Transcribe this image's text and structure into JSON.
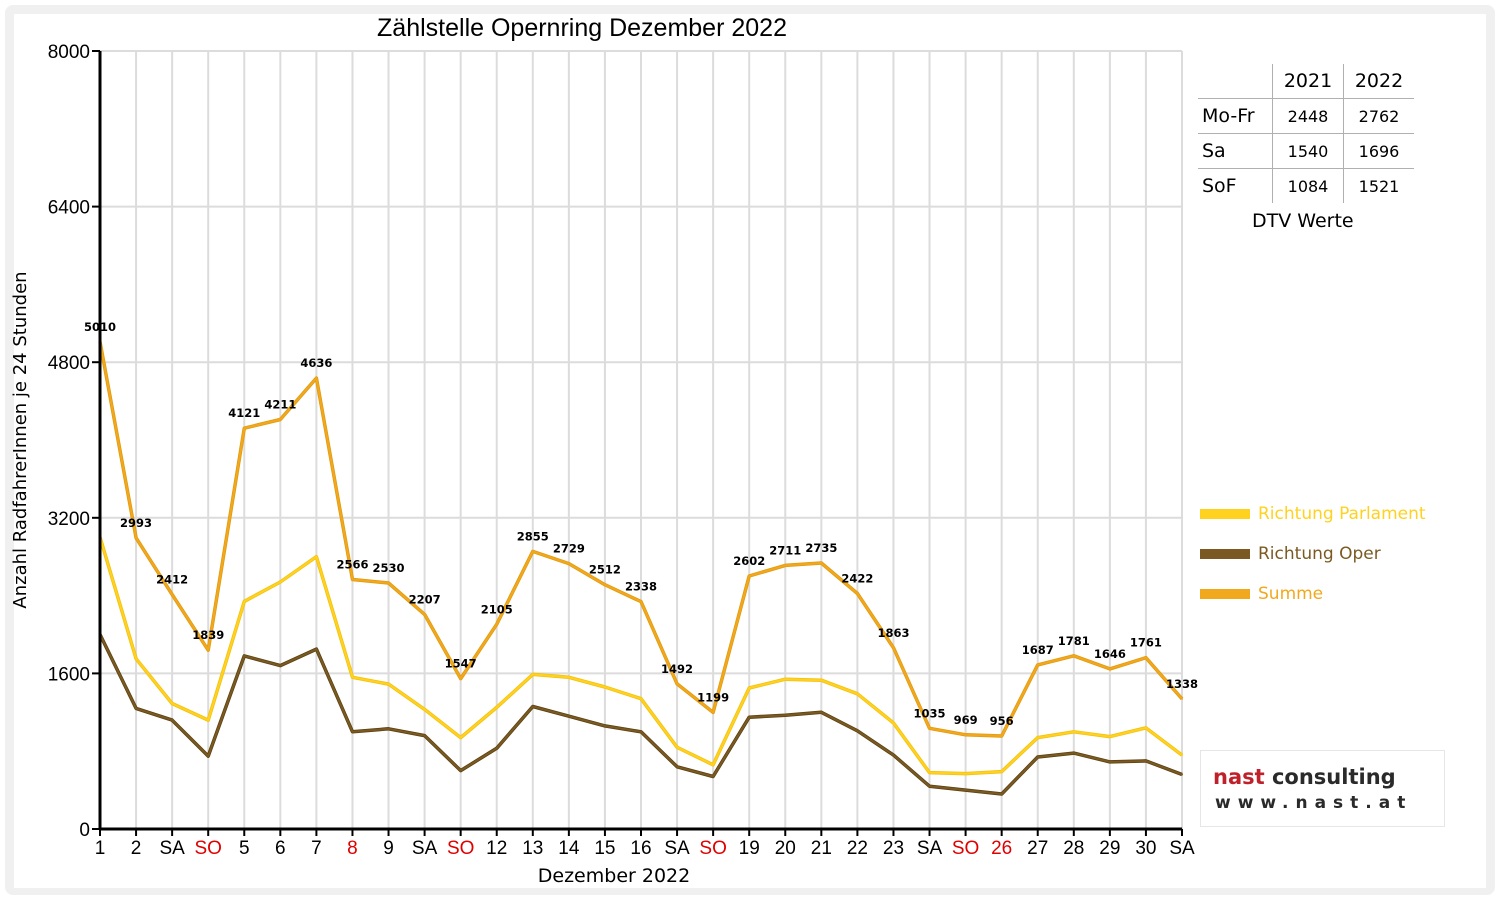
{
  "chart_data": {
    "type": "line",
    "title": "Zählstelle Opernring Dezember 2022",
    "xlabel": "Dezember 2022",
    "ylabel": "Anzahl RadfahrerInnen je 24 Stunden",
    "ylim": [
      0,
      8000
    ],
    "yticks": [
      0,
      1600,
      3200,
      4800,
      6400,
      8000
    ],
    "grid": true,
    "legend_position": "right",
    "categories": [
      "1",
      "2",
      "SA",
      "SO",
      "5",
      "6",
      "7",
      "8",
      "9",
      "SA",
      "SO",
      "12",
      "13",
      "14",
      "15",
      "16",
      "SA",
      "SO",
      "19",
      "20",
      "21",
      "22",
      "23",
      "SA",
      "SO",
      "26",
      "27",
      "28",
      "29",
      "30",
      "SA"
    ],
    "red_categories": [
      3,
      7,
      10,
      17,
      24,
      25
    ],
    "series": [
      {
        "name": "Richtung Parlament",
        "color": "#ffd21f",
        "values": [
          3000,
          1750,
          1290,
          1120,
          2340,
          2540,
          2800,
          1560,
          1490,
          1230,
          940,
          1250,
          1590,
          1560,
          1460,
          1340,
          840,
          660,
          1450,
          1540,
          1530,
          1390,
          1090,
          580,
          570,
          590,
          940,
          1000,
          950,
          1040,
          760
        ]
      },
      {
        "name": "Richtung Oper",
        "color": "#7a5a22",
        "values": [
          2000,
          1240,
          1120,
          750,
          1780,
          1680,
          1850,
          1000,
          1030,
          960,
          600,
          830,
          1260,
          1160,
          1060,
          1000,
          640,
          540,
          1150,
          1170,
          1200,
          1010,
          760,
          440,
          400,
          360,
          740,
          780,
          690,
          700,
          560
        ]
      },
      {
        "name": "Summe",
        "color": "#f2a81c",
        "values": [
          5010,
          2993,
          2412,
          1839,
          4121,
          4211,
          4636,
          2566,
          2530,
          2207,
          1547,
          2105,
          2855,
          2729,
          2512,
          2338,
          1492,
          1199,
          2602,
          2711,
          2735,
          2422,
          1863,
          1035,
          969,
          956,
          1687,
          1781,
          1646,
          1761,
          1338
        ]
      }
    ],
    "data_labels": [
      "5010",
      "2993",
      "2412",
      "1839",
      "4121",
      "4211",
      "4636",
      "2566",
      "2530",
      "2207",
      "1547",
      "2105",
      "2855",
      "2729",
      "2512",
      "2338",
      "1492",
      "1199",
      "2602",
      "2711",
      "2735",
      "2422",
      "1863",
      "1035",
      "969",
      "956",
      "1687",
      "1781",
      "1646",
      "1761",
      "1338"
    ]
  },
  "dtv_table": {
    "columns": [
      "2021",
      "2022"
    ],
    "rows": [
      {
        "label": "Mo-Fr",
        "v2021": "2448",
        "v2022": "2762"
      },
      {
        "label": "Sa",
        "v2021": "1540",
        "v2022": "1696"
      },
      {
        "label": "SoF",
        "v2021": "1084",
        "v2022": "1521"
      }
    ],
    "caption": "DTV Werte"
  },
  "logo": {
    "name_part1": "nast",
    "name_part2": " consulting",
    "url": "www.nast.at"
  }
}
